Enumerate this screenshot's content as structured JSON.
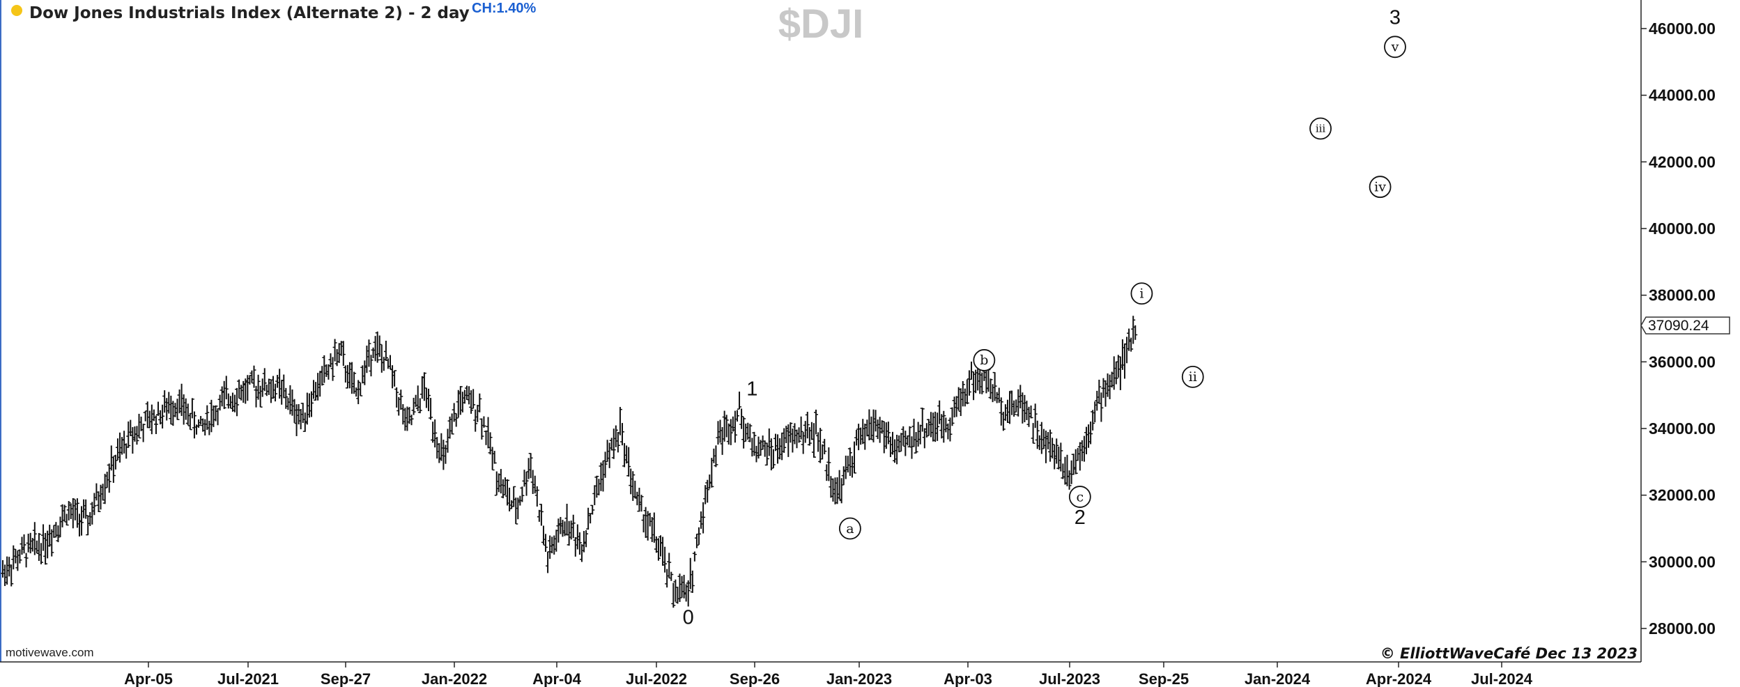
{
  "header": {
    "title": "Dow Jones Industrials Index (Alternate 2) - 2 day",
    "change": "CH:1.40%",
    "symbol": "$DJI",
    "status_dot_color": "#f5c518",
    "change_color": "#1a5fd1"
  },
  "footer": {
    "watermark": "motivewave.com",
    "copyright": "© ElliottWaveCafé Dec 13 2023"
  },
  "chart_data": {
    "type": "bar",
    "subtype": "ohlc-bars",
    "title": "Dow Jones Industrials Index (Alternate 2) - 2 day",
    "ylabel": "",
    "ylim": [
      27400,
      47000
    ],
    "y_ticks": [
      "46000.00",
      "44000.00",
      "42000.00",
      "40000.00",
      "38000.00",
      "36000.00",
      "34000.00",
      "32000.00",
      "30000.00",
      "28000.00"
    ],
    "x_ticks": [
      "Apr-05",
      "Jul-2021",
      "Sep-27",
      "Jan-2022",
      "Apr-04",
      "Jul-2022",
      "Sep-26",
      "Jan-2023",
      "Apr-03",
      "Jul-2023",
      "Sep-25",
      "Jan-2024",
      "Apr-2024",
      "Jul-2024"
    ],
    "last_price": "37090.24",
    "grid": false,
    "price_path": [
      {
        "i": 0,
        "v": 29700
      },
      {
        "i": 10,
        "v": 30300
      },
      {
        "i": 20,
        "v": 30600
      },
      {
        "i": 30,
        "v": 31500
      },
      {
        "i": 40,
        "v": 31200
      },
      {
        "i": 50,
        "v": 32700
      },
      {
        "i": 60,
        "v": 33800
      },
      {
        "i": 70,
        "v": 34300
      },
      {
        "i": 82,
        "v": 34800
      },
      {
        "i": 93,
        "v": 34000
      },
      {
        "i": 105,
        "v": 34900
      },
      {
        "i": 118,
        "v": 35300
      },
      {
        "i": 130,
        "v": 35200
      },
      {
        "i": 140,
        "v": 34300
      },
      {
        "i": 150,
        "v": 35500
      },
      {
        "i": 158,
        "v": 36300
      },
      {
        "i": 166,
        "v": 35000
      },
      {
        "i": 174,
        "v": 36500
      },
      {
        "i": 182,
        "v": 35800
      },
      {
        "i": 190,
        "v": 34000
      },
      {
        "i": 198,
        "v": 35200
      },
      {
        "i": 207,
        "v": 33000
      },
      {
        "i": 215,
        "v": 34900
      },
      {
        "i": 224,
        "v": 34600
      },
      {
        "i": 233,
        "v": 32500
      },
      {
        "i": 241,
        "v": 31500
      },
      {
        "i": 248,
        "v": 33000
      },
      {
        "i": 256,
        "v": 30100
      },
      {
        "i": 264,
        "v": 31200
      },
      {
        "i": 272,
        "v": 30500
      },
      {
        "i": 282,
        "v": 32800
      },
      {
        "i": 290,
        "v": 34000
      },
      {
        "i": 298,
        "v": 31800
      },
      {
        "i": 306,
        "v": 30800
      },
      {
        "i": 315,
        "v": 29200
      },
      {
        "i": 322,
        "v": 29000
      },
      {
        "i": 328,
        "v": 31300
      },
      {
        "i": 336,
        "v": 33700
      },
      {
        "i": 346,
        "v": 34500
      },
      {
        "i": 352,
        "v": 33500
      },
      {
        "i": 362,
        "v": 33300
      },
      {
        "i": 372,
        "v": 33800
      },
      {
        "i": 382,
        "v": 33900
      },
      {
        "i": 392,
        "v": 32000
      },
      {
        "i": 402,
        "v": 33600
      },
      {
        "i": 410,
        "v": 34200
      },
      {
        "i": 420,
        "v": 33300
      },
      {
        "i": 432,
        "v": 34000
      },
      {
        "i": 444,
        "v": 34200
      },
      {
        "i": 455,
        "v": 35500
      },
      {
        "i": 463,
        "v": 35400
      },
      {
        "i": 470,
        "v": 34600
      },
      {
        "i": 480,
        "v": 34800
      },
      {
        "i": 488,
        "v": 33600
      },
      {
        "i": 495,
        "v": 33300
      },
      {
        "i": 500,
        "v": 32700
      },
      {
        "i": 506,
        "v": 33300
      },
      {
        "i": 514,
        "v": 34700
      },
      {
        "i": 522,
        "v": 35600
      },
      {
        "i": 528,
        "v": 36200
      },
      {
        "i": 532,
        "v": 37090
      }
    ],
    "bar_count": 533,
    "wave_labels": [
      {
        "text": "0",
        "i": 322,
        "v": 28350,
        "style": "plain"
      },
      {
        "text": "1",
        "i": 352,
        "v": 35200,
        "style": "plain"
      },
      {
        "text": "a",
        "i": 398,
        "v": 31000,
        "style": "circled"
      },
      {
        "text": "b",
        "i": 461,
        "v": 36050,
        "style": "circled"
      },
      {
        "text": "c",
        "i": 506,
        "v": 31950,
        "style": "circled"
      },
      {
        "text": "2",
        "i": 506,
        "v": 31350,
        "style": "plain"
      },
      {
        "text": "i",
        "i": 535,
        "v": 38050,
        "style": "circled"
      },
      {
        "text": "ii",
        "i": 559,
        "v": 35550,
        "style": "circled"
      },
      {
        "text": "iii",
        "i": 619,
        "v": 43000,
        "style": "circled"
      },
      {
        "text": "iv",
        "i": 647,
        "v": 41250,
        "style": "circled"
      },
      {
        "text": "v",
        "i": 654,
        "v": 45450,
        "style": "circled"
      },
      {
        "text": "3",
        "i": 654,
        "v": 46350,
        "style": "plain"
      }
    ]
  }
}
